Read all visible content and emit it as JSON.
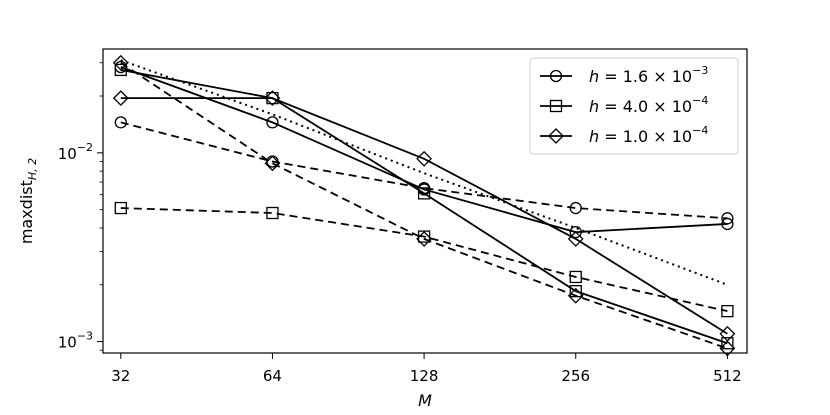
{
  "chart_data": {
    "type": "line",
    "title": "",
    "xlabel": "M",
    "ylabel_main": "maxdist",
    "ylabel_sub": "H, 2",
    "x_scale": "log2",
    "y_scale": "log10",
    "x": [
      32,
      64,
      128,
      256,
      512
    ],
    "x_tick_labels": [
      "32",
      "64",
      "128",
      "256",
      "512"
    ],
    "xlim": [
      29.5,
      560
    ],
    "ylim": [
      0.00087,
      0.0355
    ],
    "y_ticks": [
      {
        "value": 0.01,
        "base": "10",
        "exp": "−2"
      },
      {
        "value": 0.001,
        "base": "10",
        "exp": "−3"
      }
    ],
    "grid": false,
    "legend_position": "top-right",
    "legend": [
      {
        "marker": "circle",
        "prefix": "h = ",
        "mant": "1.6",
        "times": " × 10",
        "exp": "−3"
      },
      {
        "marker": "square",
        "prefix": "h = ",
        "mant": "4.0",
        "times": " × 10",
        "exp": "−4"
      },
      {
        "marker": "diamond",
        "prefix": "h = ",
        "mant": "1.0",
        "times": " × 10",
        "exp": "−4"
      }
    ],
    "series": [
      {
        "marker": "circle",
        "style": "solid",
        "values": [
          0.0285,
          0.0145,
          0.0064,
          0.0038,
          0.0042
        ]
      },
      {
        "marker": "circle",
        "style": "dashed",
        "values": [
          0.0145,
          0.009,
          0.0065,
          0.0051,
          0.0045
        ]
      },
      {
        "marker": "square",
        "style": "solid",
        "values": [
          0.0275,
          0.0195,
          0.0061,
          0.00185,
          0.00098
        ]
      },
      {
        "marker": "square",
        "style": "dashed",
        "values": [
          0.0051,
          0.0048,
          0.0036,
          0.0022,
          0.00145
        ]
      },
      {
        "marker": "diamond",
        "style": "solid",
        "values": [
          0.0195,
          0.0195,
          0.0093,
          0.0035,
          0.0011
        ]
      },
      {
        "marker": "diamond",
        "style": "dashed",
        "values": [
          0.03,
          0.0088,
          0.0035,
          0.00175,
          0.00092
        ]
      },
      {
        "marker": "none",
        "style": "dotted",
        "values": [
          0.031,
          0.016,
          0.0078,
          0.004,
          0.002
        ]
      }
    ]
  }
}
